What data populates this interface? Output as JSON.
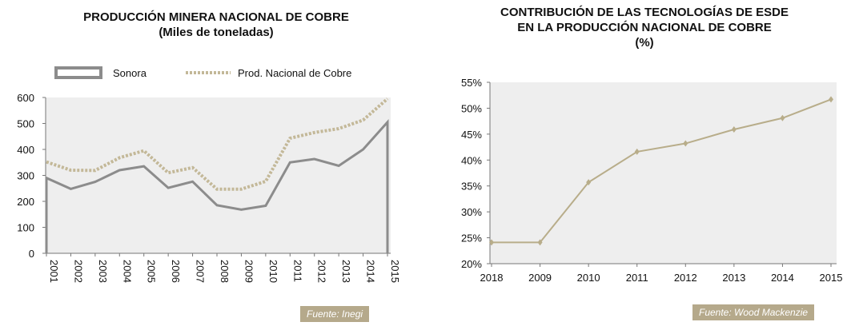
{
  "left": {
    "title": "PRODUCCIÓN MINERA NACIONAL DE COBRE",
    "subtitle": "(Miles de toneladas)",
    "source": "Fuente: Inegi"
  },
  "right": {
    "title_line1": "CONTRIBUCIÓN DE LAS TECNOLOGÍAS DE ESDE",
    "title_line2": "EN LA PRODUCCIÓN NACIONAL DE COBRE",
    "subtitle": "(%)",
    "source": "Fuente: Wood Mackenzie"
  },
  "colors": {
    "plot_bg": "#eeeeee",
    "sonora": "#8c8c8c",
    "nacional": "#c3b898",
    "esde": "#b8ad8a",
    "source_bg": "#b5a98b"
  },
  "chart_data": [
    {
      "type": "line",
      "title": "PRODUCCIÓN MINERA NACIONAL DE COBRE",
      "subtitle": "(Miles de toneladas)",
      "x": [
        "2001",
        "2002",
        "2003",
        "2004",
        "2005",
        "2006",
        "2007",
        "2008",
        "2009",
        "2010",
        "2011",
        "2012",
        "2013",
        "2014",
        "2015"
      ],
      "series": [
        {
          "name": "Sonora",
          "style": "solid",
          "values": [
            290,
            248,
            275,
            320,
            335,
            252,
            276,
            185,
            168,
            183,
            350,
            363,
            337,
            400,
            505
          ]
        },
        {
          "name": "Prod. Nacional de Cobre",
          "style": "dotted",
          "values": [
            352,
            320,
            319,
            368,
            395,
            310,
            330,
            247,
            247,
            277,
            443,
            465,
            480,
            513,
            595
          ]
        }
      ],
      "yticks": [
        "0",
        "100",
        "200",
        "300",
        "400",
        "500",
        "600"
      ],
      "ylim": [
        0,
        600
      ],
      "legend": "top",
      "grid": false
    },
    {
      "type": "line",
      "title": "CONTRIBUCIÓN DE LAS TECNOLOGÍAS DE ESDE EN LA PRODUCCIÓN NACIONAL DE COBRE",
      "subtitle": "(%)",
      "x": [
        "2018",
        "2009",
        "2010",
        "2011",
        "2012",
        "2013",
        "2014",
        "2015"
      ],
      "series": [
        {
          "values": [
            24.1,
            24.1,
            35.7,
            41.6,
            43.2,
            45.9,
            48.1,
            51.7
          ]
        }
      ],
      "yticks": [
        "20%",
        "25%",
        "30%",
        "35%",
        "40%",
        "45%",
        "50%",
        "55%"
      ],
      "ylim": [
        20,
        55
      ],
      "legend": "none",
      "grid": false
    }
  ]
}
